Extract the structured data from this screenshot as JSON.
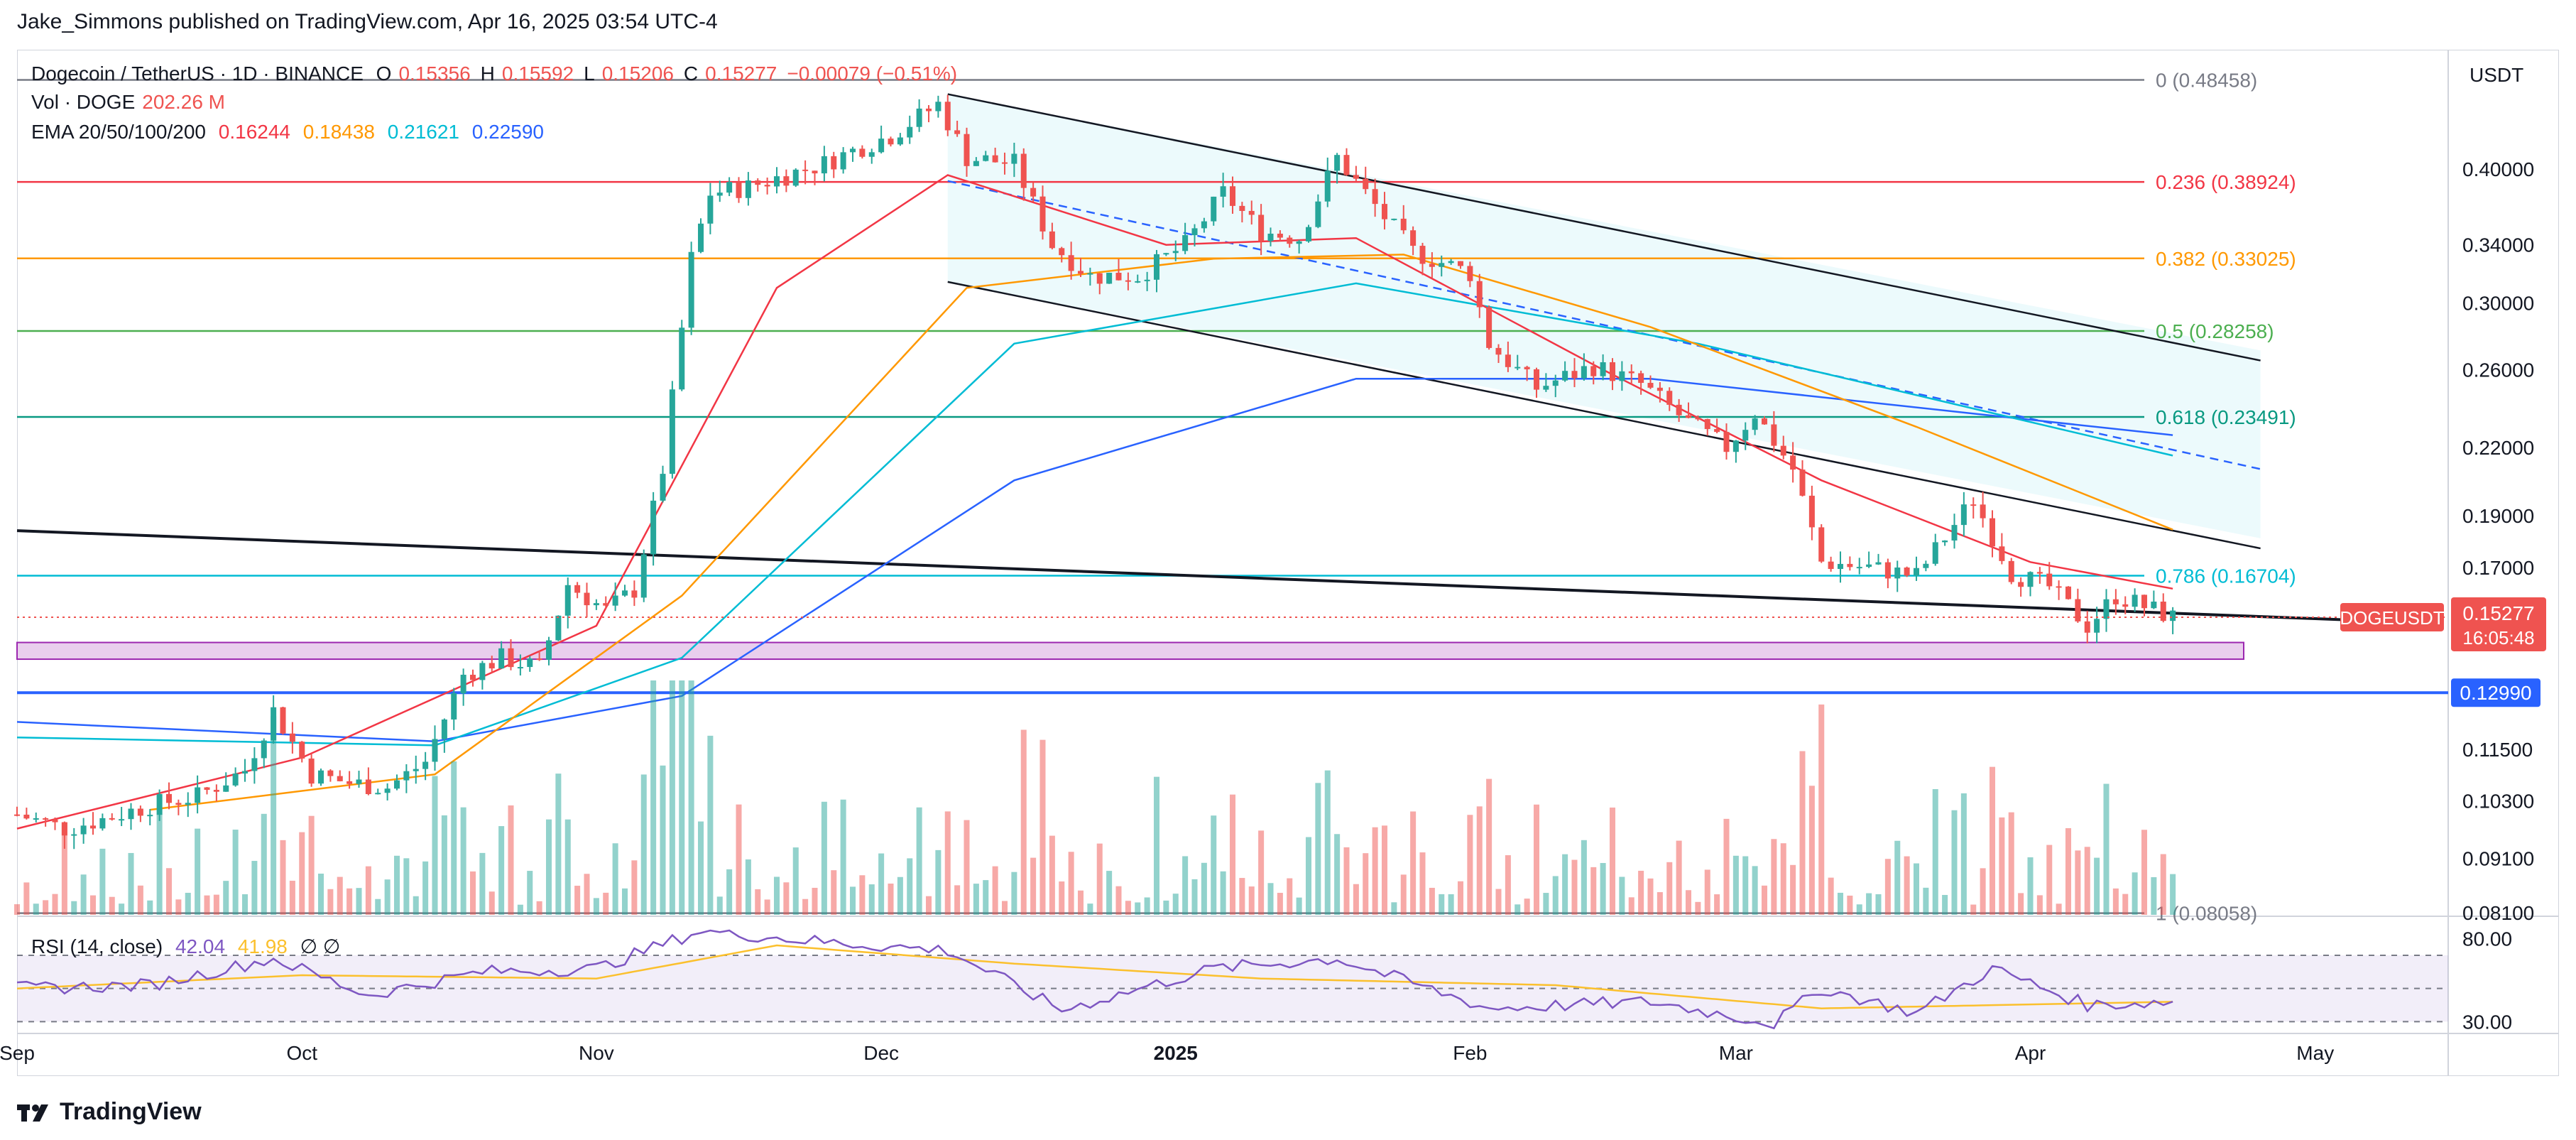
{
  "header": {
    "published": "Jake_Simmons published on TradingView.com, Apr 16, 2025 03:54 UTC-4"
  },
  "footer": {
    "brand": "TradingView"
  },
  "axis_unit": "USDT",
  "legend": {
    "symbol": "Dogecoin / TetherUS · 1D · BINANCE",
    "o_label": "O",
    "o": "0.15356",
    "h_label": "H",
    "h": "0.15592",
    "l_label": "L",
    "l": "0.15206",
    "c_label": "C",
    "c": "0.15277",
    "change": "−0.00079 (−0.51%)",
    "vol_label": "Vol · DOGE",
    "vol": "202.26 M",
    "ema_label": "EMA 20/50/100/200",
    "ema20": "0.16244",
    "ema50": "0.18438",
    "ema100": "0.21621",
    "ema200": "0.22590",
    "rsi_label": "RSI (14, close)",
    "rsi": "42.04",
    "rsi_ma": "41.98",
    "rsi_extra": "∅ ∅"
  },
  "colors": {
    "up": "#26a69a",
    "down": "#ef5350",
    "ema20": "#f23645",
    "ema50": "#ff9800",
    "ema100": "#00bcd4",
    "ema200": "#2962ff",
    "support": "#2962ff",
    "zone": "#ce93d8"
  },
  "chart_data": [
    {
      "type": "candlestick",
      "title": "Dogecoin / TetherUS · 1D · BINANCE",
      "x_ticks": [
        "Sep",
        "Oct",
        "Nov",
        "Dec",
        "2025",
        "Feb",
        "Mar",
        "Apr",
        "May"
      ],
      "y_ticks": [
        "0.40000",
        "0.34000",
        "0.30000",
        "0.26000",
        "0.22000",
        "0.19000",
        "0.17000",
        "0.11500",
        "0.10300",
        "0.09100",
        "0.08100"
      ],
      "y_scale": "log",
      "ylim": [
        0.0806,
        0.5
      ],
      "x_range": [
        "2024-09-01",
        "2025-05-15"
      ],
      "series_points": [
        [
          "2024-09-01",
          0.1
        ],
        [
          "2024-09-06",
          0.097
        ],
        [
          "2024-09-10",
          0.099
        ],
        [
          "2024-09-15",
          0.102
        ],
        [
          "2024-09-20",
          0.104
        ],
        [
          "2024-09-25",
          0.11
        ],
        [
          "2024-09-28",
          0.125
        ],
        [
          "2024-10-02",
          0.109
        ],
        [
          "2024-10-06",
          0.107
        ],
        [
          "2024-10-10",
          0.106
        ],
        [
          "2024-10-14",
          0.112
        ],
        [
          "2024-10-18",
          0.135
        ],
        [
          "2024-10-22",
          0.14
        ],
        [
          "2024-10-26",
          0.137
        ],
        [
          "2024-10-29",
          0.164
        ],
        [
          "2024-11-02",
          0.155
        ],
        [
          "2024-11-05",
          0.162
        ],
        [
          "2024-11-08",
          0.21
        ],
        [
          "2024-11-11",
          0.33
        ],
        [
          "2024-11-13",
          0.38
        ],
        [
          "2024-11-17",
          0.385
        ],
        [
          "2024-11-21",
          0.395
        ],
        [
          "2024-11-25",
          0.405
        ],
        [
          "2024-11-29",
          0.42
        ],
        [
          "2024-12-02",
          0.43
        ],
        [
          "2024-12-07",
          0.46
        ],
        [
          "2024-12-10",
          0.41
        ],
        [
          "2024-12-15",
          0.405
        ],
        [
          "2024-12-19",
          0.34
        ],
        [
          "2024-12-23",
          0.318
        ],
        [
          "2024-12-28",
          0.318
        ],
        [
          "2025-01-02",
          0.34
        ],
        [
          "2025-01-06",
          0.38
        ],
        [
          "2025-01-10",
          0.35
        ],
        [
          "2025-01-14",
          0.345
        ],
        [
          "2025-01-18",
          0.41
        ],
        [
          "2025-01-22",
          0.37
        ],
        [
          "2025-01-26",
          0.335
        ],
        [
          "2025-02-01",
          0.32
        ],
        [
          "2025-02-03",
          0.275
        ],
        [
          "2025-02-08",
          0.25
        ],
        [
          "2025-02-14",
          0.262
        ],
        [
          "2025-02-19",
          0.252
        ],
        [
          "2025-02-24",
          0.232
        ],
        [
          "2025-02-28",
          0.22
        ],
        [
          "2025-03-03",
          0.237
        ],
        [
          "2025-03-07",
          0.21
        ],
        [
          "2025-03-10",
          0.172
        ],
        [
          "2025-03-15",
          0.17
        ],
        [
          "2025-03-20",
          0.167
        ],
        [
          "2025-03-26",
          0.197
        ],
        [
          "2025-03-30",
          0.168
        ],
        [
          "2025-04-03",
          0.163
        ],
        [
          "2025-04-07",
          0.15
        ],
        [
          "2025-04-10",
          0.16
        ],
        [
          "2025-04-16",
          0.15277
        ]
      ],
      "last_price": {
        "value": 0.15277,
        "symbol": "DOGEUSDT",
        "price": "0.15277",
        "countdown": "16:05:48"
      },
      "support_level": {
        "value": 0.1299,
        "label": "0.12990"
      },
      "support_zone": [
        0.1396,
        0.1447
      ],
      "fib_levels": [
        {
          "ratio": "0",
          "value": 0.48458,
          "label": "0 (0.48458)",
          "color": "#787b86"
        },
        {
          "ratio": "0.236",
          "value": 0.38924,
          "label": "0.236 (0.38924)",
          "color": "#f23645"
        },
        {
          "ratio": "0.382",
          "value": 0.33025,
          "label": "0.382 (0.33025)",
          "color": "#ff9800"
        },
        {
          "ratio": "0.5",
          "value": 0.28258,
          "label": "0.5 (0.28258)",
          "color": "#4caf50"
        },
        {
          "ratio": "0.618",
          "value": 0.23491,
          "label": "0.618 (0.23491)",
          "color": "#089981"
        },
        {
          "ratio": "0.786",
          "value": 0.16704,
          "label": "0.786 (0.16704)",
          "color": "#00bcd4"
        },
        {
          "ratio": "1",
          "value": 0.08058,
          "label": "1 (0.08058)",
          "color": "#787b86"
        }
      ],
      "trendlines": [
        {
          "name": "long-term",
          "from": [
            "2024-09-01",
            0.184
          ],
          "to": [
            "2025-05-01",
            0.1523
          ]
        },
        {
          "name": "channel-top",
          "from": [
            "2024-12-08",
            0.47
          ],
          "to": [
            "2025-04-20",
            0.271
          ]
        },
        {
          "name": "channel-bottom",
          "from": [
            "2024-12-08",
            0.314
          ],
          "to": [
            "2025-04-20",
            0.181
          ]
        },
        {
          "name": "channel-mid",
          "from": [
            "2024-12-08",
            0.39
          ],
          "to": [
            "2025-04-20",
            0.215
          ]
        }
      ],
      "ema": {
        "ema20": [
          [
            "2024-09-01",
            0.097
          ],
          [
            "2024-10-01",
            0.113
          ],
          [
            "2024-11-01",
            0.15
          ],
          [
            "2024-11-20",
            0.31
          ],
          [
            "2024-12-08",
            0.395
          ],
          [
            "2024-12-31",
            0.34
          ],
          [
            "2025-01-20",
            0.345
          ],
          [
            "2025-02-15",
            0.26
          ],
          [
            "2025-03-10",
            0.205
          ],
          [
            "2025-04-01",
            0.172
          ],
          [
            "2025-04-16",
            0.16244
          ]
        ],
        "ema50": [
          [
            "2024-09-15",
            0.101
          ],
          [
            "2024-10-15",
            0.109
          ],
          [
            "2024-11-10",
            0.16
          ],
          [
            "2024-12-10",
            0.31
          ],
          [
            "2025-01-05",
            0.33
          ],
          [
            "2025-01-25",
            0.333
          ],
          [
            "2025-02-20",
            0.285
          ],
          [
            "2025-03-20",
            0.23
          ],
          [
            "2025-04-16",
            0.18438
          ]
        ],
        "ema100": [
          [
            "2024-09-01",
            0.118
          ],
          [
            "2024-10-15",
            0.116
          ],
          [
            "2024-11-10",
            0.14
          ],
          [
            "2024-12-15",
            0.275
          ],
          [
            "2025-01-20",
            0.313
          ],
          [
            "2025-02-25",
            0.275
          ],
          [
            "2025-04-16",
            0.21621
          ]
        ],
        "ema200": [
          [
            "2024-09-01",
            0.122
          ],
          [
            "2024-10-15",
            0.117
          ],
          [
            "2024-11-10",
            0.129
          ],
          [
            "2024-12-15",
            0.205
          ],
          [
            "2025-01-20",
            0.255
          ],
          [
            "2025-02-20",
            0.255
          ],
          [
            "2025-04-16",
            0.2259
          ]
        ]
      }
    },
    {
      "type": "bar",
      "title": "Vol · DOGE",
      "last_value": "202.26 M",
      "note": "relative heights, 0-1"
    },
    {
      "type": "line",
      "title": "RSI (14, close)",
      "y_ticks": [
        "80.00",
        "30.00"
      ],
      "ylim": [
        25,
        85
      ],
      "levels": [
        70,
        50,
        30
      ],
      "rsi": [
        [
          "2024-09-01",
          50
        ],
        [
          "2024-09-15",
          52
        ],
        [
          "2024-09-28",
          68
        ],
        [
          "2024-10-08",
          46
        ],
        [
          "2024-10-20",
          60
        ],
        [
          "2024-11-01",
          62
        ],
        [
          "2024-11-12",
          85
        ],
        [
          "2024-11-25",
          78
        ],
        [
          "2024-12-08",
          73
        ],
        [
          "2024-12-20",
          37
        ],
        [
          "2025-01-05",
          62
        ],
        [
          "2025-01-18",
          68
        ],
        [
          "2025-02-03",
          38
        ],
        [
          "2025-02-20",
          42
        ],
        [
          "2025-03-05",
          29
        ],
        [
          "2025-03-10",
          50
        ],
        [
          "2025-03-20",
          35
        ],
        [
          "2025-03-28",
          62
        ],
        [
          "2025-04-07",
          40
        ],
        [
          "2025-04-16",
          42.04
        ]
      ],
      "rsi_ma": [
        [
          "2024-09-01",
          50
        ],
        [
          "2024-10-01",
          58
        ],
        [
          "2024-11-01",
          56
        ],
        [
          "2024-11-20",
          76
        ],
        [
          "2024-12-15",
          65
        ],
        [
          "2025-01-10",
          56
        ],
        [
          "2025-02-10",
          52
        ],
        [
          "2025-03-10",
          38
        ],
        [
          "2025-04-16",
          41.98
        ]
      ]
    }
  ]
}
